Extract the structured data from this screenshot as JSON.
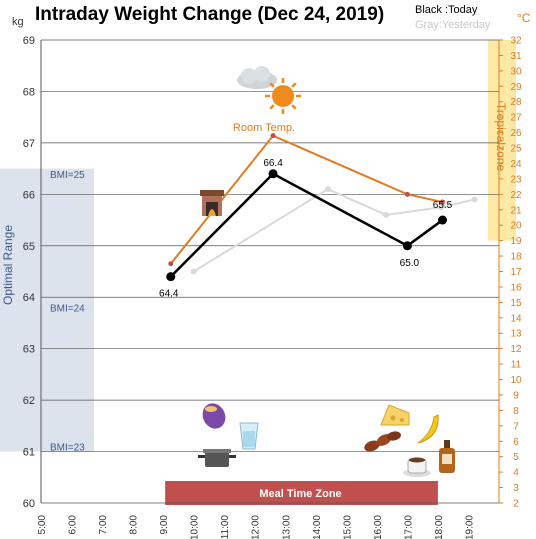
{
  "chart_data": {
    "type": "line",
    "title": "Intraday Weight Change (Dec 24, 2019)",
    "legend_today": "Black :Today",
    "legend_yesterday": "Gray:Yesterday",
    "y_unit_left": "kg",
    "y_unit_right": "°C",
    "xlim": [
      5,
      20
    ],
    "ylim_left": [
      60,
      69
    ],
    "ylim_right": [
      2,
      32
    ],
    "grid": "horizontal",
    "x_tick_labels": [
      "5:00",
      "6:00",
      "7:00",
      "8:00",
      "9:00",
      "10:00",
      "11:00",
      "12:00",
      "13:00",
      "14:00",
      "15:00",
      "16:00",
      "17:00",
      "18:00",
      "19:00"
    ],
    "y_left_ticks": [
      60,
      61,
      62,
      63,
      64,
      65,
      66,
      67,
      68,
      69
    ],
    "y_right_ticks": [
      2,
      3,
      4,
      5,
      6,
      7,
      8,
      9,
      10,
      11,
      12,
      13,
      14,
      15,
      16,
      17,
      18,
      19,
      20,
      21,
      22,
      23,
      24,
      25,
      26,
      27,
      28,
      29,
      30,
      31,
      32
    ],
    "series": [
      {
        "name": "Today",
        "color": "#000000",
        "x": [
          9.25,
          12.6,
          17.0,
          18.15
        ],
        "y": [
          64.4,
          66.4,
          65.0,
          65.5
        ],
        "point_labels": [
          "64.4",
          "66.4",
          "65.0",
          "65.5"
        ]
      },
      {
        "name": "Yesterday",
        "color": "#d9d9d9",
        "x": [
          10.0,
          14.4,
          16.3,
          18.1,
          19.2
        ],
        "y": [
          64.5,
          66.1,
          65.6,
          65.75,
          65.9
        ]
      },
      {
        "name": "Room Temp.",
        "color": "#e07b1f",
        "axis": "right",
        "x": [
          9.25,
          12.6,
          17.0,
          18.15
        ],
        "y": [
          17.5,
          25.8,
          22.0,
          21.5
        ]
      }
    ],
    "annotations": {
      "room_temp": "Room Temp.",
      "optimal_range": "Optimal Range",
      "optimal_range_kg": [
        61.0,
        66.5
      ],
      "bmi_labels": [
        {
          "text": "BMI=25",
          "y": 66.4
        },
        {
          "text": "BMI=24",
          "y": 63.8
        },
        {
          "text": "BMI=23",
          "y": 61.1
        }
      ],
      "tropical": "Tropicalzone",
      "tropical_range_c": [
        19,
        32
      ],
      "meal_zone": "Meal Time Zone",
      "meal_zone_x": [
        9.0,
        18.0
      ]
    },
    "icons": [
      "fireplace-icon",
      "cloud-sun-icon",
      "sweet-potato-icon",
      "water-glass-icon",
      "cooking-pot-icon",
      "cheese-icon",
      "banana-icon",
      "dates-icon",
      "coffee-cup-icon",
      "whisky-bottle-icon"
    ]
  }
}
